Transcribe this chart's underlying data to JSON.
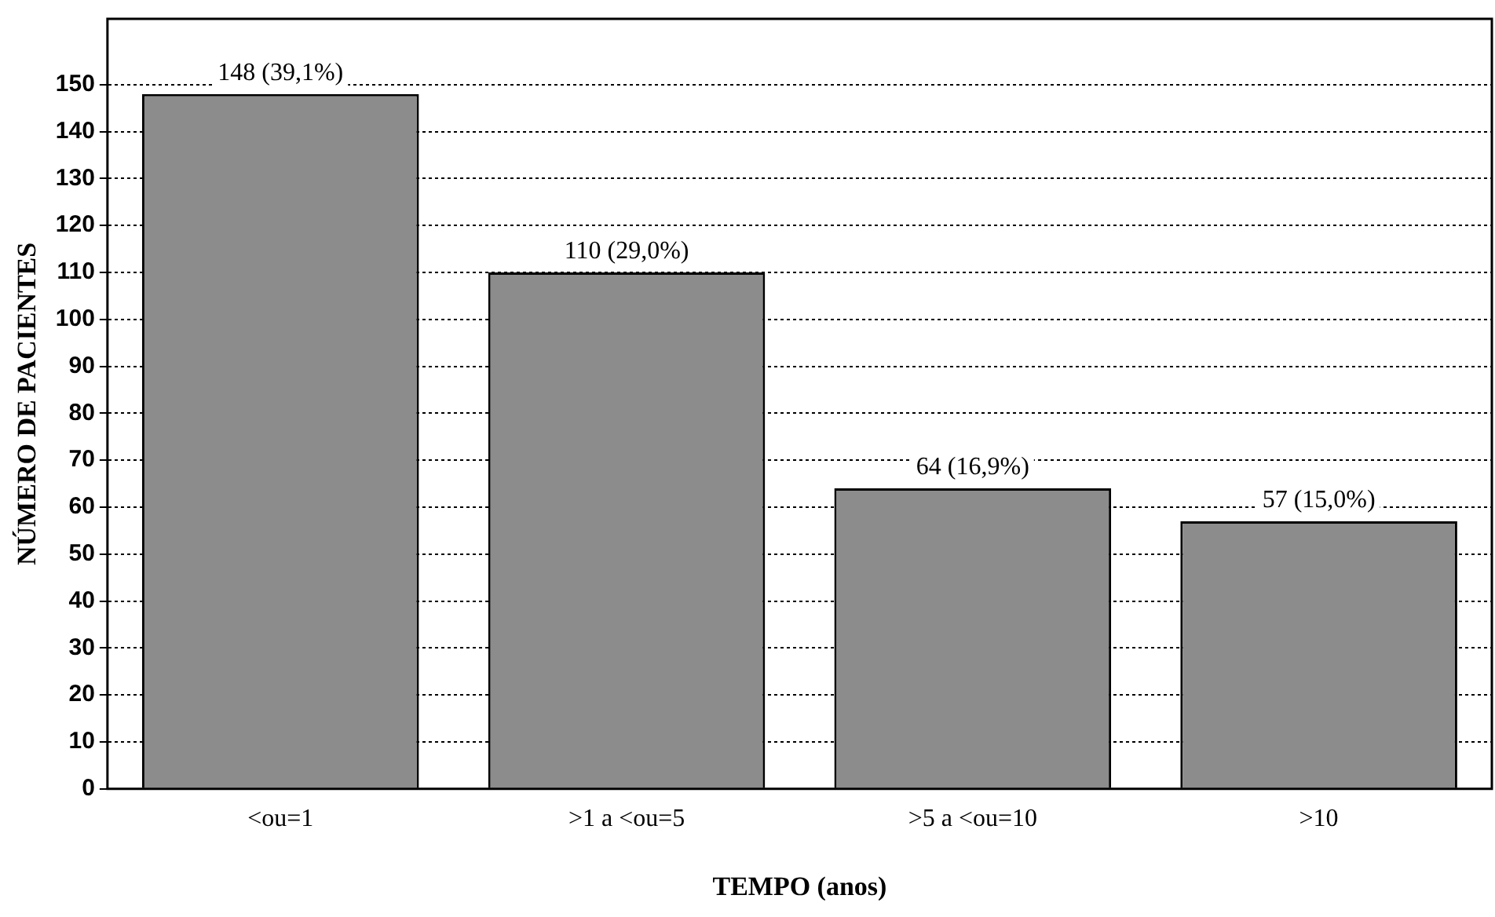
{
  "chart_data": {
    "type": "bar",
    "xlabel": "TEMPO (anos)",
    "ylabel": "NÚMERO DE PACIENTES",
    "categories": [
      "<ou=1",
      ">1 a <ou=5",
      ">5 a <ou=10",
      ">10"
    ],
    "values": [
      148,
      110,
      64,
      57
    ],
    "value_labels": [
      "148 (39,1%)",
      "110 (29,0%)",
      "64 (16,9%)",
      "57 (15,0%)"
    ],
    "color": "#8c8c8c",
    "ylim": [
      0,
      164
    ],
    "yticks": [
      0,
      10,
      20,
      30,
      40,
      50,
      60,
      70,
      80,
      90,
      100,
      110,
      120,
      130,
      140,
      150
    ],
    "grid": "y",
    "legend": false
  }
}
